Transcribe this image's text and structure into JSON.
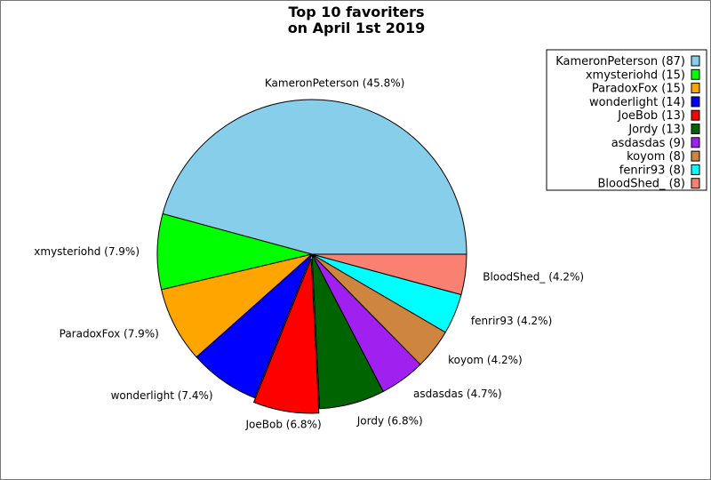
{
  "chart_data": {
    "type": "pie",
    "title": [
      "Top 10 favoriters",
      "on April 1st 2019"
    ],
    "start_angle_deg": 0,
    "direction": "counterclockwise",
    "exploded_gap_index": 4,
    "legend_placement": "top-right",
    "slices": [
      {
        "name": "KameronPeterson",
        "value": 87,
        "color": "#87CEEB",
        "label": "KameronPeterson (45.8%)",
        "legend": "KameronPeterson (87)"
      },
      {
        "name": "xmysteriohd",
        "value": 15,
        "color": "#00FF00",
        "label": "xmysteriohd (7.9%)",
        "legend": "xmysteriohd (15)"
      },
      {
        "name": "ParadoxFox",
        "value": 15,
        "color": "#FFA500",
        "label": "ParadoxFox (7.9%)",
        "legend": "ParadoxFox (15)"
      },
      {
        "name": "wonderlight",
        "value": 14,
        "color": "#0000FF",
        "label": "wonderlight (7.4%)",
        "legend": "wonderlight (14)"
      },
      {
        "name": "JoeBob",
        "value": 13,
        "color": "#FF0000",
        "label": "JoeBob (6.8%)",
        "legend": "JoeBob (13)"
      },
      {
        "name": "Jordy",
        "value": 13,
        "color": "#006400",
        "label": "Jordy (6.8%)",
        "legend": "Jordy (13)"
      },
      {
        "name": "asdasdas",
        "value": 9,
        "color": "#A020F0",
        "label": "asdasdas (4.7%)",
        "legend": "asdasdas (9)"
      },
      {
        "name": "koyom",
        "value": 8,
        "color": "#CD853F",
        "label": "koyom (4.2%)",
        "legend": "koyom (8)"
      },
      {
        "name": "fenrir93",
        "value": 8,
        "color": "#00FFFF",
        "label": "fenrir93 (4.2%)",
        "legend": "fenrir93 (8)"
      },
      {
        "name": "BloodShed_",
        "value": 8,
        "color": "#FA8072",
        "label": "BloodShed_ (4.2%)",
        "legend": "BloodShed_ (8)"
      }
    ]
  }
}
